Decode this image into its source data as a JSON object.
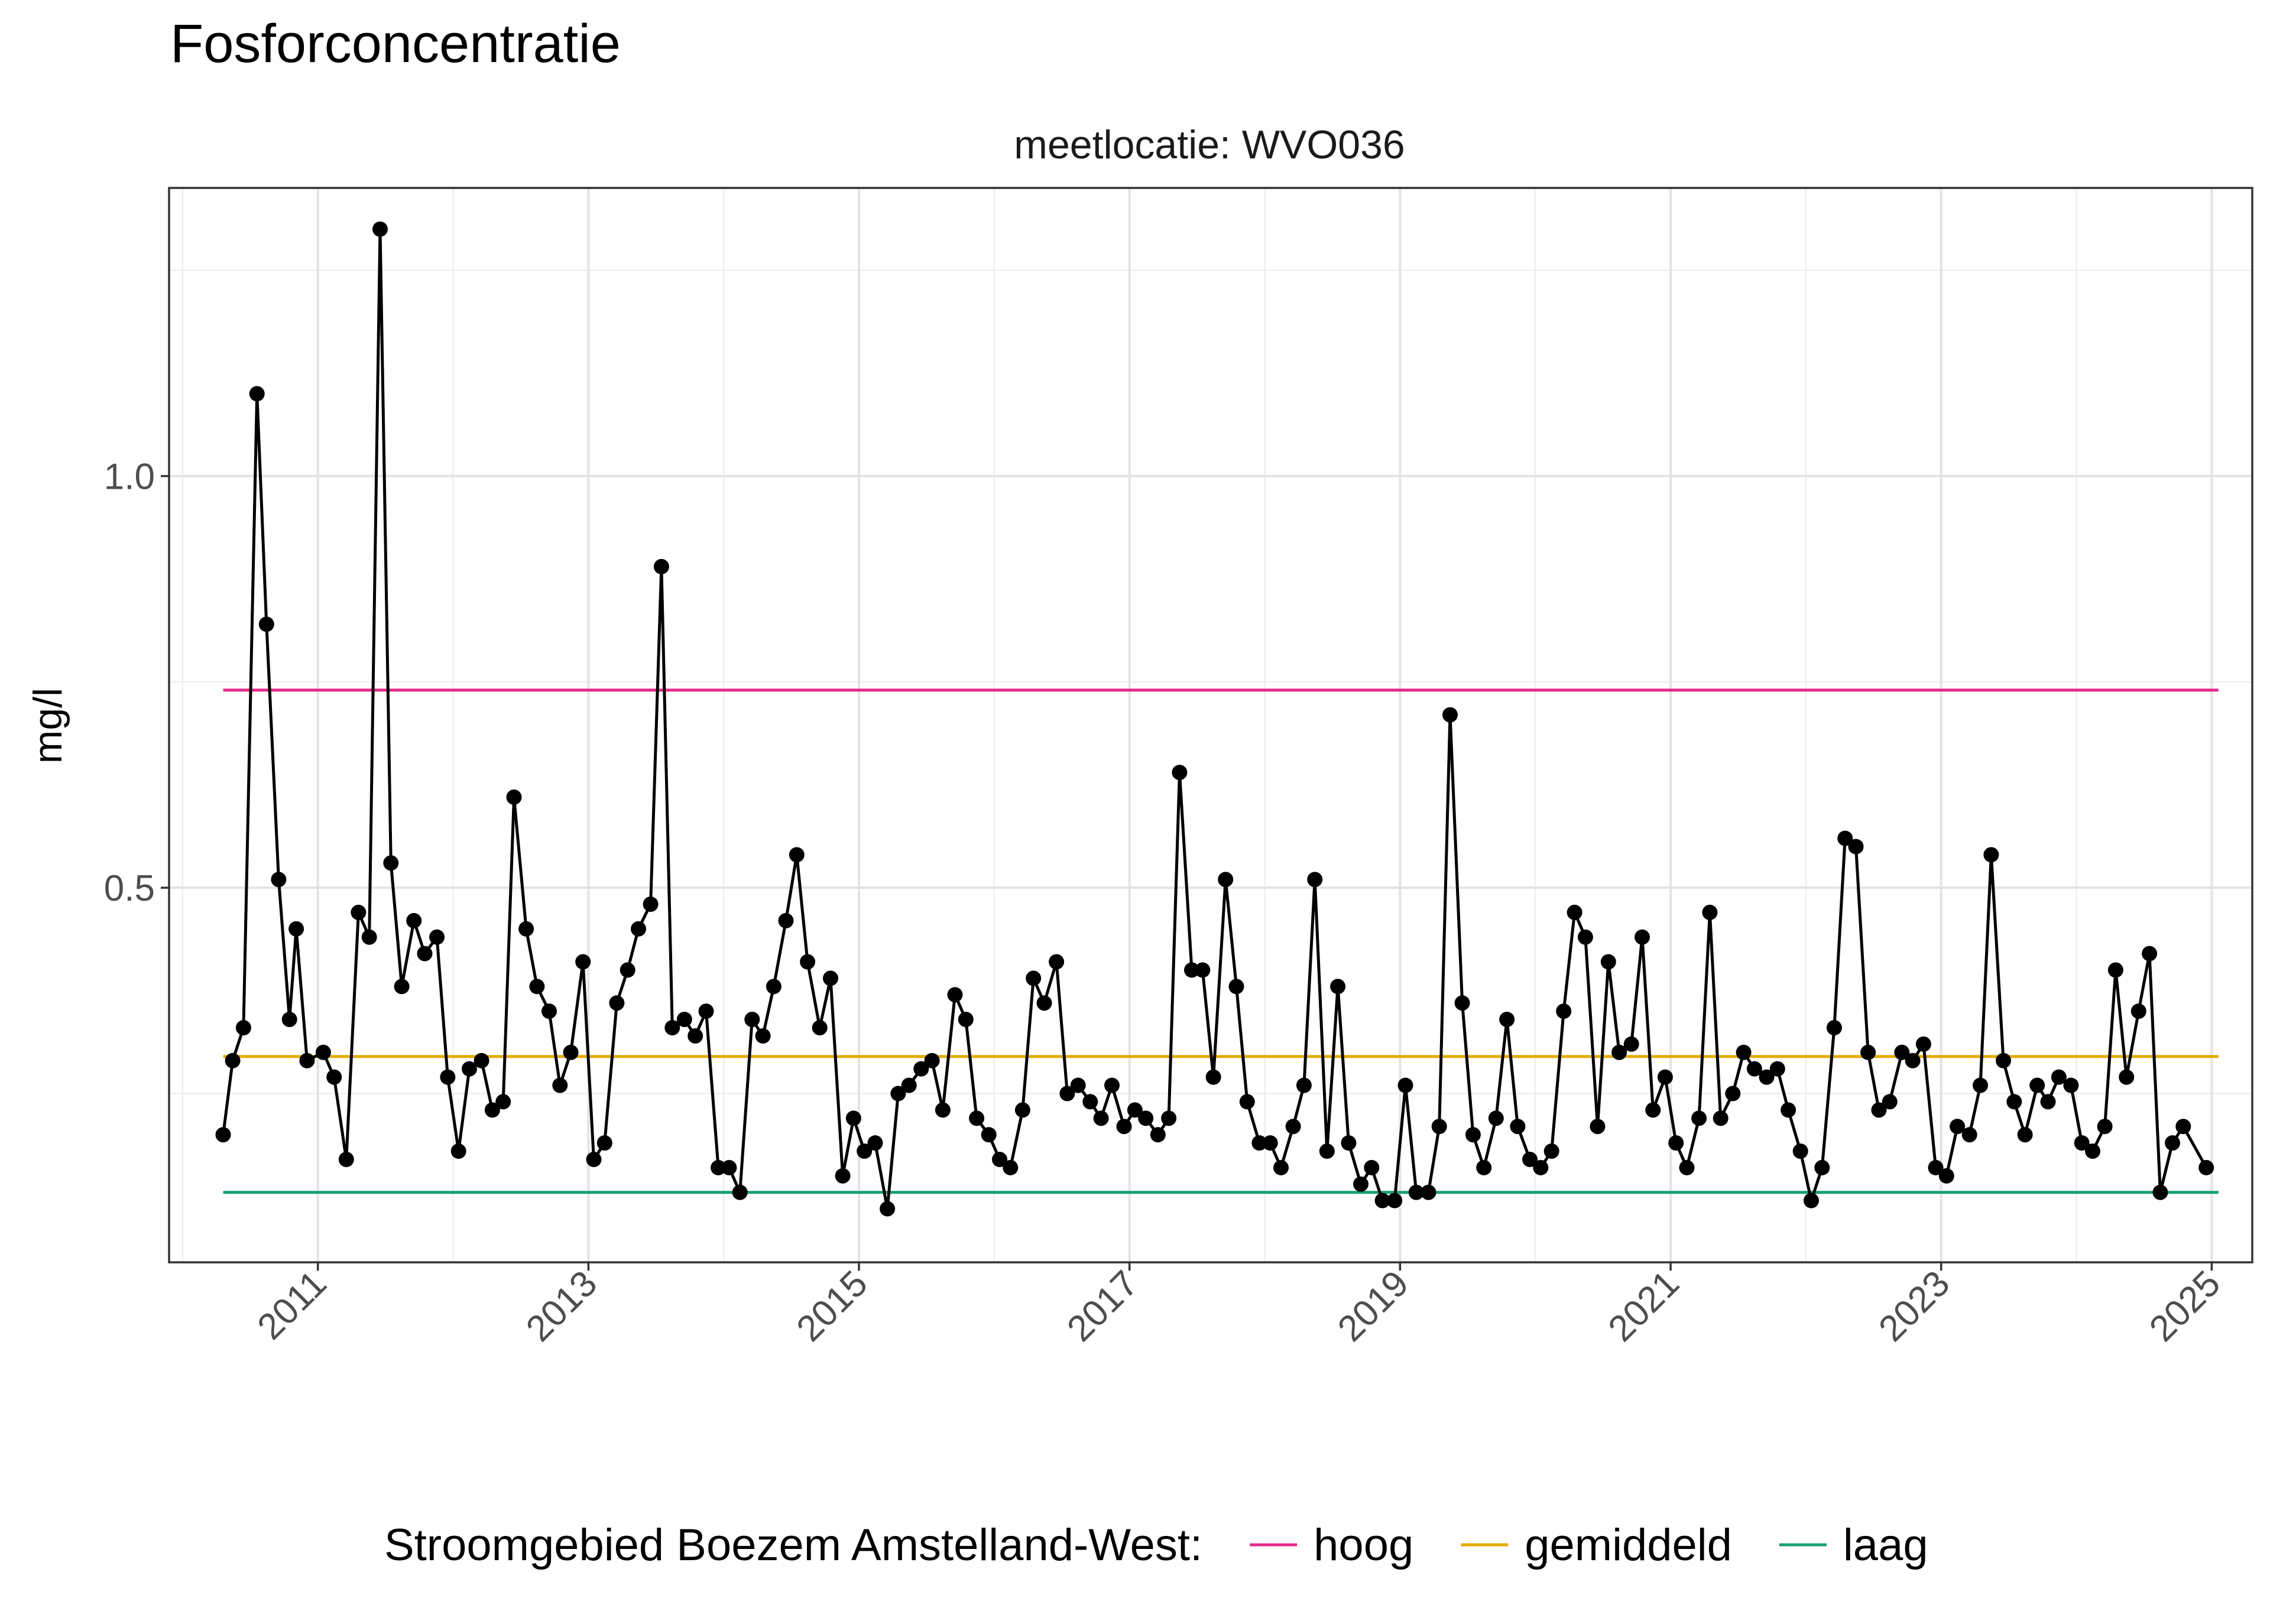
{
  "chart_data": {
    "type": "line",
    "title": "Fosforconcentratie",
    "facet_label": "meetlocatie: WVO036",
    "ylabel": "mg/l",
    "xlabel": "",
    "xlim": [
      2009.9,
      2025.3
    ],
    "ylim": [
      0.045,
      1.35
    ],
    "x_ticks": [
      2011,
      2013,
      2015,
      2017,
      2019,
      2021,
      2023,
      2025
    ],
    "y_ticks": [
      0.5,
      1.0
    ],
    "y_tick_labels": [
      "0.5",
      "1.0"
    ],
    "grid": true,
    "legend": {
      "position": "bottom",
      "title": "Stroomgebied Boezem Amstelland-West:",
      "items": [
        {
          "label": "hoog",
          "color": "#E7298A"
        },
        {
          "label": "gemiddeld",
          "color": "#E6AB02"
        },
        {
          "label": "laag",
          "color": "#1B9E77"
        }
      ]
    },
    "reference_lines": [
      {
        "name": "hoog",
        "value": 0.74,
        "color": "#E7298A",
        "x_range": [
          2010.3,
          2025.05
        ]
      },
      {
        "name": "gemiddeld",
        "value": 0.295,
        "color": "#E6AB02",
        "x_range": [
          2010.3,
          2025.05
        ]
      },
      {
        "name": "laag",
        "value": 0.13,
        "color": "#1B9E77",
        "x_range": [
          2010.3,
          2025.05
        ]
      }
    ],
    "series": [
      {
        "color": "#000000",
        "points": [
          [
            2010.3,
            0.2
          ],
          [
            2010.37,
            0.29
          ],
          [
            2010.45,
            0.33
          ],
          [
            2010.55,
            1.1
          ],
          [
            2010.62,
            0.82
          ],
          [
            2010.71,
            0.51
          ],
          [
            2010.79,
            0.34
          ],
          [
            2010.84,
            0.45
          ],
          [
            2010.92,
            0.29
          ],
          [
            2011.04,
            0.3
          ],
          [
            2011.12,
            0.27
          ],
          [
            2011.21,
            0.17
          ],
          [
            2011.3,
            0.47
          ],
          [
            2011.38,
            0.44
          ],
          [
            2011.46,
            1.3
          ],
          [
            2011.54,
            0.53
          ],
          [
            2011.62,
            0.38
          ],
          [
            2011.71,
            0.46
          ],
          [
            2011.79,
            0.42
          ],
          [
            2011.88,
            0.44
          ],
          [
            2011.96,
            0.27
          ],
          [
            2012.04,
            0.18
          ],
          [
            2012.12,
            0.28
          ],
          [
            2012.21,
            0.29
          ],
          [
            2012.29,
            0.23
          ],
          [
            2012.37,
            0.24
          ],
          [
            2012.45,
            0.61
          ],
          [
            2012.54,
            0.45
          ],
          [
            2012.62,
            0.38
          ],
          [
            2012.71,
            0.35
          ],
          [
            2012.79,
            0.26
          ],
          [
            2012.87,
            0.3
          ],
          [
            2012.96,
            0.41
          ],
          [
            2013.04,
            0.17
          ],
          [
            2013.12,
            0.19
          ],
          [
            2013.21,
            0.36
          ],
          [
            2013.29,
            0.4
          ],
          [
            2013.37,
            0.45
          ],
          [
            2013.46,
            0.48
          ],
          [
            2013.54,
            0.89
          ],
          [
            2013.62,
            0.33
          ],
          [
            2013.71,
            0.34
          ],
          [
            2013.79,
            0.32
          ],
          [
            2013.87,
            0.35
          ],
          [
            2013.96,
            0.16
          ],
          [
            2014.04,
            0.16
          ],
          [
            2014.12,
            0.13
          ],
          [
            2014.21,
            0.34
          ],
          [
            2014.29,
            0.32
          ],
          [
            2014.37,
            0.38
          ],
          [
            2014.46,
            0.46
          ],
          [
            2014.54,
            0.54
          ],
          [
            2014.62,
            0.41
          ],
          [
            2014.71,
            0.33
          ],
          [
            2014.79,
            0.39
          ],
          [
            2014.88,
            0.15
          ],
          [
            2014.96,
            0.22
          ],
          [
            2015.04,
            0.18
          ],
          [
            2015.12,
            0.19
          ],
          [
            2015.21,
            0.11
          ],
          [
            2015.29,
            0.25
          ],
          [
            2015.37,
            0.26
          ],
          [
            2015.46,
            0.28
          ],
          [
            2015.54,
            0.29
          ],
          [
            2015.62,
            0.23
          ],
          [
            2015.71,
            0.37
          ],
          [
            2015.79,
            0.34
          ],
          [
            2015.87,
            0.22
          ],
          [
            2015.96,
            0.2
          ],
          [
            2016.04,
            0.17
          ],
          [
            2016.12,
            0.16
          ],
          [
            2016.21,
            0.23
          ],
          [
            2016.29,
            0.39
          ],
          [
            2016.37,
            0.36
          ],
          [
            2016.46,
            0.41
          ],
          [
            2016.54,
            0.25
          ],
          [
            2016.62,
            0.26
          ],
          [
            2016.71,
            0.24
          ],
          [
            2016.79,
            0.22
          ],
          [
            2016.87,
            0.26
          ],
          [
            2016.96,
            0.21
          ],
          [
            2017.04,
            0.23
          ],
          [
            2017.12,
            0.22
          ],
          [
            2017.21,
            0.2
          ],
          [
            2017.29,
            0.22
          ],
          [
            2017.37,
            0.64
          ],
          [
            2017.46,
            0.4
          ],
          [
            2017.54,
            0.4
          ],
          [
            2017.62,
            0.27
          ],
          [
            2017.71,
            0.51
          ],
          [
            2017.79,
            0.38
          ],
          [
            2017.87,
            0.24
          ],
          [
            2017.96,
            0.19
          ],
          [
            2018.04,
            0.19
          ],
          [
            2018.12,
            0.16
          ],
          [
            2018.21,
            0.21
          ],
          [
            2018.29,
            0.26
          ],
          [
            2018.37,
            0.51
          ],
          [
            2018.46,
            0.18
          ],
          [
            2018.54,
            0.38
          ],
          [
            2018.62,
            0.19
          ],
          [
            2018.71,
            0.14
          ],
          [
            2018.79,
            0.16
          ],
          [
            2018.87,
            0.12
          ],
          [
            2018.96,
            0.12
          ],
          [
            2019.04,
            0.26
          ],
          [
            2019.12,
            0.13
          ],
          [
            2019.21,
            0.13
          ],
          [
            2019.29,
            0.21
          ],
          [
            2019.37,
            0.71
          ],
          [
            2019.46,
            0.36
          ],
          [
            2019.54,
            0.2
          ],
          [
            2019.62,
            0.16
          ],
          [
            2019.71,
            0.22
          ],
          [
            2019.79,
            0.34
          ],
          [
            2019.87,
            0.21
          ],
          [
            2019.96,
            0.17
          ],
          [
            2020.04,
            0.16
          ],
          [
            2020.12,
            0.18
          ],
          [
            2020.21,
            0.35
          ],
          [
            2020.29,
            0.47
          ],
          [
            2020.37,
            0.44
          ],
          [
            2020.46,
            0.21
          ],
          [
            2020.54,
            0.41
          ],
          [
            2020.62,
            0.3
          ],
          [
            2020.71,
            0.31
          ],
          [
            2020.79,
            0.44
          ],
          [
            2020.87,
            0.23
          ],
          [
            2020.96,
            0.27
          ],
          [
            2021.04,
            0.19
          ],
          [
            2021.12,
            0.16
          ],
          [
            2021.21,
            0.22
          ],
          [
            2021.29,
            0.47
          ],
          [
            2021.37,
            0.22
          ],
          [
            2021.46,
            0.25
          ],
          [
            2021.54,
            0.3
          ],
          [
            2021.62,
            0.28
          ],
          [
            2021.71,
            0.27
          ],
          [
            2021.79,
            0.28
          ],
          [
            2021.87,
            0.23
          ],
          [
            2021.96,
            0.18
          ],
          [
            2022.04,
            0.12
          ],
          [
            2022.12,
            0.16
          ],
          [
            2022.21,
            0.33
          ],
          [
            2022.29,
            0.56
          ],
          [
            2022.37,
            0.55
          ],
          [
            2022.46,
            0.3
          ],
          [
            2022.54,
            0.23
          ],
          [
            2022.62,
            0.24
          ],
          [
            2022.71,
            0.3
          ],
          [
            2022.79,
            0.29
          ],
          [
            2022.87,
            0.31
          ],
          [
            2022.96,
            0.16
          ],
          [
            2023.04,
            0.15
          ],
          [
            2023.12,
            0.21
          ],
          [
            2023.21,
            0.2
          ],
          [
            2023.29,
            0.26
          ],
          [
            2023.37,
            0.54
          ],
          [
            2023.46,
            0.29
          ],
          [
            2023.54,
            0.24
          ],
          [
            2023.62,
            0.2
          ],
          [
            2023.71,
            0.26
          ],
          [
            2023.79,
            0.24
          ],
          [
            2023.87,
            0.27
          ],
          [
            2023.96,
            0.26
          ],
          [
            2024.04,
            0.19
          ],
          [
            2024.12,
            0.18
          ],
          [
            2024.21,
            0.21
          ],
          [
            2024.29,
            0.4
          ],
          [
            2024.37,
            0.27
          ],
          [
            2024.46,
            0.35
          ],
          [
            2024.54,
            0.42
          ],
          [
            2024.62,
            0.13
          ],
          [
            2024.71,
            0.19
          ],
          [
            2024.79,
            0.21
          ],
          [
            2024.96,
            0.16
          ]
        ]
      }
    ]
  }
}
